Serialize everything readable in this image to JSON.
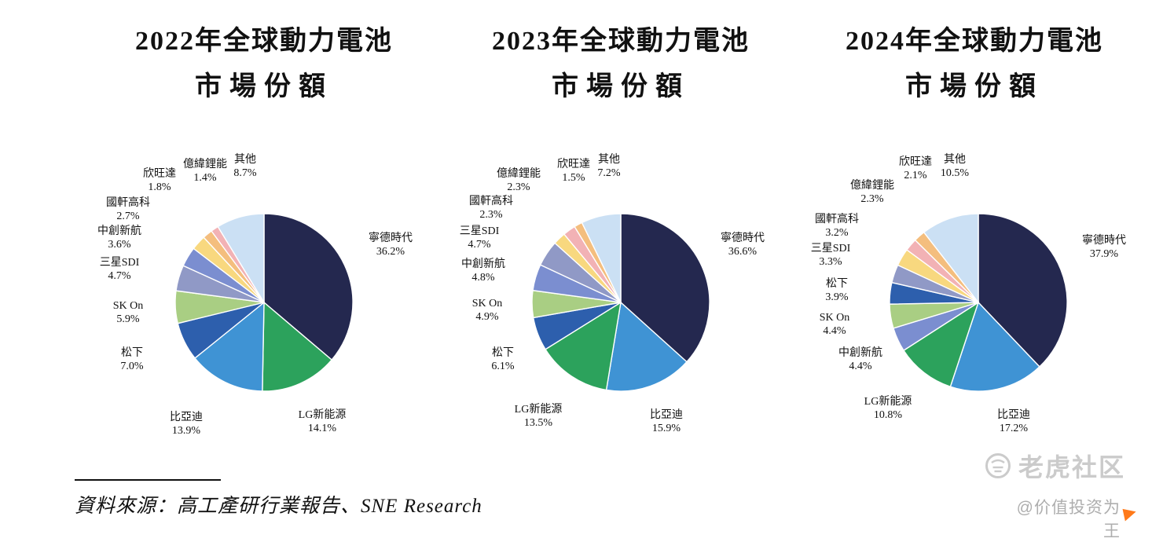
{
  "page": {
    "source_note": "資料來源：高工產研行業報告、SNE Research",
    "watermark": {
      "brand": "老虎社区",
      "handle": "@价值投资为王"
    }
  },
  "colors": {
    "catl": "#24284f",
    "lg": "#2ca25c",
    "byd": "#3f93d4",
    "panasonic": "#2d5fad",
    "skon": "#a9ce83",
    "samsung_sdi": "#9099c6",
    "calb": "#7b8ed0",
    "gotion": "#f8d87f",
    "sunwoda": "#f4be7e",
    "eve": "#f2b2b5",
    "others": "#cbe0f4"
  },
  "chart_data": [
    {
      "type": "pie",
      "title_line1": "2022年全球動力電池",
      "title_line2": "市場份額",
      "legend_position": "around",
      "slices": [
        {
          "label": "寧德時代",
          "value": 36.2,
          "pct": "36.2%",
          "color": "#24284f"
        },
        {
          "label": "LG新能源",
          "value": 14.1,
          "pct": "14.1%",
          "color": "#2ca25c"
        },
        {
          "label": "比亞迪",
          "value": 13.9,
          "pct": "13.9%",
          "color": "#3f93d4"
        },
        {
          "label": "松下",
          "value": 7.0,
          "pct": "7.0%",
          "color": "#2d5fad"
        },
        {
          "label": "SK On",
          "value": 5.9,
          "pct": "5.9%",
          "color": "#a9ce83"
        },
        {
          "label": "三星SDI",
          "value": 4.7,
          "pct": "4.7%",
          "color": "#9099c6"
        },
        {
          "label": "中創新航",
          "value": 3.6,
          "pct": "3.6%",
          "color": "#7b8ed0"
        },
        {
          "label": "國軒高科",
          "value": 2.7,
          "pct": "2.7%",
          "color": "#f8d87f"
        },
        {
          "label": "欣旺達",
          "value": 1.8,
          "pct": "1.8%",
          "color": "#f4be7e"
        },
        {
          "label": "億緯鋰能",
          "value": 1.4,
          "pct": "1.4%",
          "color": "#f2b2b5"
        },
        {
          "label": "其他",
          "value": 8.7,
          "pct": "8.7%",
          "color": "#cbe0f4"
        }
      ]
    },
    {
      "type": "pie",
      "title_line1": "2023年全球動力電池",
      "title_line2": "市場份額",
      "legend_position": "around",
      "slices": [
        {
          "label": "寧德時代",
          "value": 36.6,
          "pct": "36.6%",
          "color": "#24284f"
        },
        {
          "label": "比亞迪",
          "value": 15.9,
          "pct": "15.9%",
          "color": "#3f93d4"
        },
        {
          "label": "LG新能源",
          "value": 13.5,
          "pct": "13.5%",
          "color": "#2ca25c"
        },
        {
          "label": "松下",
          "value": 6.1,
          "pct": "6.1%",
          "color": "#2d5fad"
        },
        {
          "label": "SK On",
          "value": 4.9,
          "pct": "4.9%",
          "color": "#a9ce83"
        },
        {
          "label": "中創新航",
          "value": 4.8,
          "pct": "4.8%",
          "color": "#7b8ed0"
        },
        {
          "label": "三星SDI",
          "value": 4.7,
          "pct": "4.7%",
          "color": "#9099c6"
        },
        {
          "label": "國軒高科",
          "value": 2.3,
          "pct": "2.3%",
          "color": "#f8d87f"
        },
        {
          "label": "億緯鋰能",
          "value": 2.3,
          "pct": "2.3%",
          "color": "#f2b2b5"
        },
        {
          "label": "欣旺達",
          "value": 1.5,
          "pct": "1.5%",
          "color": "#f4be7e"
        },
        {
          "label": "其他",
          "value": 7.2,
          "pct": "7.2%",
          "color": "#cbe0f4"
        }
      ]
    },
    {
      "type": "pie",
      "title_line1": "2024年全球動力電池",
      "title_line2": "市場份額",
      "legend_position": "around",
      "slices": [
        {
          "label": "寧德時代",
          "value": 37.9,
          "pct": "37.9%",
          "color": "#24284f"
        },
        {
          "label": "比亞迪",
          "value": 17.2,
          "pct": "17.2%",
          "color": "#3f93d4"
        },
        {
          "label": "LG新能源",
          "value": 10.8,
          "pct": "10.8%",
          "color": "#2ca25c"
        },
        {
          "label": "中創新航",
          "value": 4.4,
          "pct": "4.4%",
          "color": "#7b8ed0"
        },
        {
          "label": "SK On",
          "value": 4.4,
          "pct": "4.4%",
          "color": "#a9ce83"
        },
        {
          "label": "松下",
          "value": 3.9,
          "pct": "3.9%",
          "color": "#2d5fad"
        },
        {
          "label": "三星SDI",
          "value": 3.3,
          "pct": "3.3%",
          "color": "#9099c6"
        },
        {
          "label": "國軒高科",
          "value": 3.2,
          "pct": "3.2%",
          "color": "#f8d87f"
        },
        {
          "label": "億緯鋰能",
          "value": 2.3,
          "pct": "2.3%",
          "color": "#f2b2b5"
        },
        {
          "label": "欣旺達",
          "value": 2.1,
          "pct": "2.1%",
          "color": "#f4be7e"
        },
        {
          "label": "其他",
          "value": 10.5,
          "pct": "10.5%",
          "color": "#cbe0f4"
        }
      ]
    }
  ]
}
